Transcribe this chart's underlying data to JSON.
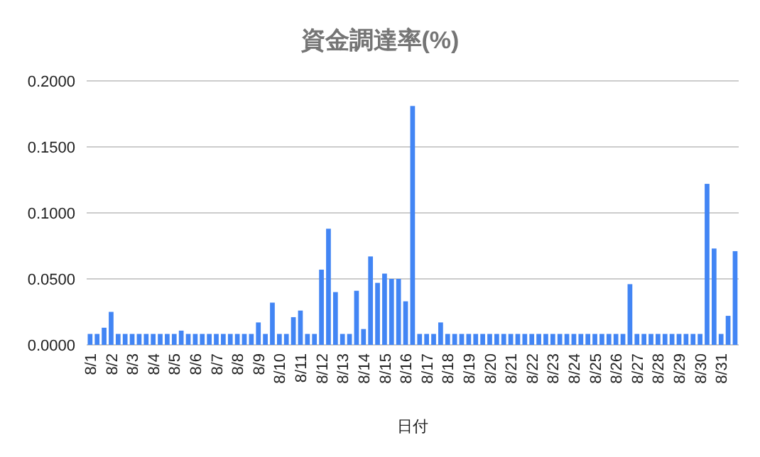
{
  "chart_data": {
    "type": "bar",
    "title": "資金調達率(%)",
    "xlabel": "日付",
    "categories": [
      "8/1",
      null,
      null,
      "8/2",
      null,
      null,
      "8/3",
      null,
      null,
      "8/4",
      null,
      null,
      "8/5",
      null,
      null,
      "8/6",
      null,
      null,
      "8/7",
      null,
      null,
      "8/8",
      null,
      null,
      "8/9",
      null,
      null,
      "8/10",
      null,
      null,
      "8/11",
      null,
      null,
      "8/12",
      null,
      null,
      "8/13",
      null,
      null,
      "8/14",
      null,
      null,
      "8/15",
      null,
      null,
      "8/16",
      null,
      null,
      "8/17",
      null,
      null,
      "8/18",
      null,
      null,
      "8/19",
      null,
      null,
      "8/20",
      null,
      null,
      "8/21",
      null,
      null,
      "8/22",
      null,
      null,
      "8/23",
      null,
      null,
      "8/24",
      null,
      null,
      "8/25",
      null,
      null,
      "8/26",
      null,
      null,
      "8/27",
      null,
      null,
      "8/28",
      null,
      null,
      "8/29",
      null,
      null,
      "8/30",
      null,
      null,
      "8/31",
      null,
      null
    ],
    "values": [
      0.0083,
      0.0083,
      0.013,
      0.025,
      0.0083,
      0.0083,
      0.0083,
      0.0083,
      0.0083,
      0.0083,
      0.0083,
      0.0083,
      0.0083,
      0.0108,
      0.0083,
      0.0083,
      0.0083,
      0.0083,
      0.0083,
      0.0083,
      0.0083,
      0.0083,
      0.0083,
      0.0083,
      0.017,
      0.0083,
      0.032,
      0.0083,
      0.0083,
      0.021,
      0.026,
      0.0083,
      0.0083,
      0.057,
      0.088,
      0.04,
      0.0083,
      0.0083,
      0.041,
      0.012,
      0.067,
      0.047,
      0.054,
      0.05,
      0.05,
      0.033,
      0.181,
      0.0083,
      0.0083,
      0.0083,
      0.017,
      0.0083,
      0.0083,
      0.0083,
      0.0083,
      0.0083,
      0.0083,
      0.0083,
      0.0083,
      0.0083,
      0.0083,
      0.0083,
      0.0083,
      0.0083,
      0.0083,
      0.0083,
      0.0083,
      0.0083,
      0.0083,
      0.0083,
      0.0083,
      0.0083,
      0.0083,
      0.0083,
      0.0083,
      0.0083,
      0.0083,
      0.046,
      0.0083,
      0.0083,
      0.0083,
      0.0083,
      0.0083,
      0.0083,
      0.0083,
      0.0083,
      0.0083,
      0.0083,
      0.122,
      0.073,
      0.0083,
      0.022,
      0.071
    ],
    "color": "#4285f4",
    "ylim": [
      0,
      0.2
    ],
    "yticks": [
      {
        "value": 0,
        "label": "0.0000"
      },
      {
        "value": 0.05,
        "label": "0.0500"
      },
      {
        "value": 0.1,
        "label": "0.1000"
      },
      {
        "value": 0.15,
        "label": "0.1500"
      },
      {
        "value": 0.2,
        "label": "0.2000"
      }
    ],
    "grid": true
  }
}
